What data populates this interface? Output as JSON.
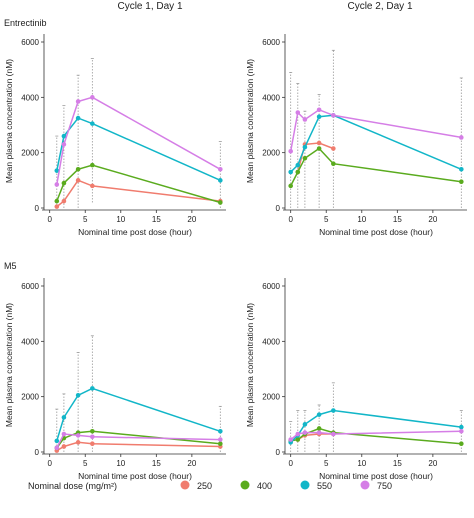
{
  "colors": {
    "250": "#f07c6e",
    "400": "#5aab1e",
    "550": "#12b6c8",
    "750": "#d57ee6"
  },
  "strip_labels": [
    "Cycle 1, Day 1",
    "Cycle 2, Day 1"
  ],
  "row_labels": [
    "Entrectinib",
    "M5"
  ],
  "legend": {
    "title": "Nominal dose (mg/m²)",
    "items": [
      "250",
      "400",
      "550",
      "750"
    ]
  },
  "chart_data": [
    {
      "type": "line",
      "column": "Cycle 1, Day 1",
      "row": "Entrectinib",
      "xlabel": "Nominal time post dose (hour)",
      "ylabel": "Mean plasma concentration (nM)",
      "xlim": [
        0,
        24
      ],
      "ylim": [
        0,
        6000
      ],
      "xticks": [
        0,
        5,
        10,
        15,
        20,
        25
      ],
      "yticks": [
        0,
        2000,
        4000,
        6000
      ],
      "series": [
        {
          "dose": "250",
          "x": [
            1,
            2,
            4,
            6,
            24
          ],
          "y": [
            50,
            250,
            1000,
            800,
            250
          ]
        },
        {
          "dose": "400",
          "x": [
            1,
            2,
            4,
            6,
            24
          ],
          "y": [
            250,
            900,
            1400,
            1550,
            200
          ]
        },
        {
          "dose": "550",
          "x": [
            1,
            2,
            4,
            6,
            24
          ],
          "y": [
            1350,
            2600,
            3250,
            3050,
            1000
          ]
        },
        {
          "dose": "750",
          "x": [
            1,
            2,
            4,
            6,
            24
          ],
          "y": [
            850,
            2300,
            3850,
            4000,
            1400
          ]
        }
      ],
      "error_bars": [
        {
          "x": 1,
          "low": 0,
          "high": 2600
        },
        {
          "x": 2,
          "low": 0,
          "high": 3700
        },
        {
          "x": 4,
          "low": 0,
          "high": 4800
        },
        {
          "x": 6,
          "low": 200,
          "high": 5400
        },
        {
          "x": 24,
          "low": 0,
          "high": 2400
        }
      ]
    },
    {
      "type": "line",
      "column": "Cycle 2, Day 1",
      "row": "Entrectinib",
      "xlabel": "Nominal time post dose (hour)",
      "ylabel": "Mean plasma concentration (nM)",
      "xlim": [
        0,
        24
      ],
      "ylim": [
        0,
        6000
      ],
      "xticks": [
        0,
        5,
        10,
        15,
        20,
        25
      ],
      "yticks": [
        0,
        2000,
        4000,
        6000
      ],
      "series": [
        {
          "dose": "250",
          "x": [
            1,
            2,
            4,
            6
          ],
          "y": [
            1300,
            2300,
            2350,
            2150
          ]
        },
        {
          "dose": "400",
          "x": [
            0,
            1,
            2,
            4,
            6,
            24
          ],
          "y": [
            800,
            1300,
            1800,
            2150,
            1600,
            950
          ]
        },
        {
          "dose": "550",
          "x": [
            0,
            1,
            2,
            4,
            6,
            24
          ],
          "y": [
            1300,
            1550,
            2200,
            3300,
            3350,
            1400
          ]
        },
        {
          "dose": "750",
          "x": [
            0,
            1,
            2,
            4,
            6,
            24
          ],
          "y": [
            2050,
            3450,
            3200,
            3550,
            3350,
            2550
          ]
        }
      ],
      "error_bars": [
        {
          "x": 0,
          "low": 0,
          "high": 4900
        },
        {
          "x": 1,
          "low": 0,
          "high": 4500
        },
        {
          "x": 2,
          "low": 0,
          "high": 3500
        },
        {
          "x": 4,
          "low": 0,
          "high": 4100
        },
        {
          "x": 6,
          "low": 0,
          "high": 5700
        },
        {
          "x": 24,
          "low": 0,
          "high": 4700
        }
      ]
    },
    {
      "type": "line",
      "column": "Cycle 1, Day 1",
      "row": "M5",
      "xlabel": "Nominal time post dose (hour)",
      "ylabel": "Mean plasma concentration (nM)",
      "xlim": [
        0,
        24
      ],
      "ylim": [
        0,
        6000
      ],
      "xticks": [
        0,
        5,
        10,
        15,
        20,
        25
      ],
      "yticks": [
        0,
        2000,
        4000,
        6000
      ],
      "series": [
        {
          "dose": "250",
          "x": [
            1,
            2,
            4,
            6,
            24
          ],
          "y": [
            50,
            200,
            350,
            300,
            200
          ]
        },
        {
          "dose": "400",
          "x": [
            1,
            2,
            4,
            6,
            24
          ],
          "y": [
            150,
            500,
            700,
            750,
            300
          ]
        },
        {
          "dose": "550",
          "x": [
            1,
            2,
            4,
            6,
            24
          ],
          "y": [
            400,
            1250,
            2050,
            2300,
            750
          ]
        },
        {
          "dose": "750",
          "x": [
            1,
            2,
            4,
            6,
            24
          ],
          "y": [
            150,
            650,
            600,
            550,
            450
          ]
        }
      ],
      "error_bars": [
        {
          "x": 1,
          "low": 0,
          "high": 1550
        },
        {
          "x": 2,
          "low": 0,
          "high": 2100
        },
        {
          "x": 4,
          "low": 0,
          "high": 3600
        },
        {
          "x": 6,
          "low": 0,
          "high": 4200
        },
        {
          "x": 24,
          "low": 0,
          "high": 1650
        }
      ]
    },
    {
      "type": "line",
      "column": "Cycle 2, Day 1",
      "row": "M5",
      "xlabel": "Nominal time post dose (hour)",
      "ylabel": "Mean plasma concentration (nM)",
      "xlim": [
        0,
        24
      ],
      "ylim": [
        0,
        6000
      ],
      "xticks": [
        0,
        5,
        10,
        15,
        20,
        25
      ],
      "yticks": [
        0,
        2000,
        4000,
        6000
      ],
      "series": [
        {
          "dose": "250",
          "x": [
            1,
            2,
            4,
            6
          ],
          "y": [
            450,
            600,
            650,
            650
          ]
        },
        {
          "dose": "400",
          "x": [
            0,
            1,
            2,
            4,
            6,
            24
          ],
          "y": [
            400,
            450,
            650,
            850,
            700,
            300
          ]
        },
        {
          "dose": "550",
          "x": [
            0,
            1,
            2,
            4,
            6,
            24
          ],
          "y": [
            350,
            600,
            1000,
            1350,
            1500,
            900
          ]
        },
        {
          "dose": "750",
          "x": [
            0,
            1,
            2,
            4,
            6,
            24
          ],
          "y": [
            450,
            650,
            700,
            700,
            650,
            750
          ]
        }
      ],
      "error_bars": [
        {
          "x": 0,
          "low": 0,
          "high": 1100
        },
        {
          "x": 1,
          "low": 0,
          "high": 1500
        },
        {
          "x": 2,
          "low": 0,
          "high": 1500
        },
        {
          "x": 4,
          "low": 0,
          "high": 1700
        },
        {
          "x": 6,
          "low": 0,
          "high": 2500
        },
        {
          "x": 24,
          "low": 0,
          "high": 1500
        }
      ]
    }
  ]
}
